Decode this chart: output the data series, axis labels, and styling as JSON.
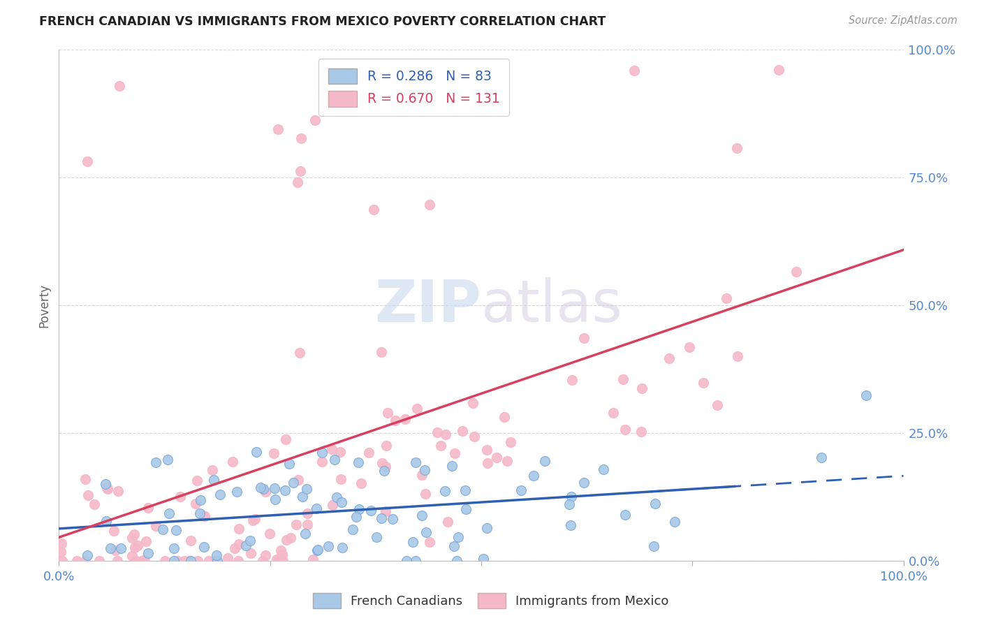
{
  "title": "FRENCH CANADIAN VS IMMIGRANTS FROM MEXICO POVERTY CORRELATION CHART",
  "source_text": "Source: ZipAtlas.com",
  "ylabel": "Poverty",
  "xlim": [
    0.0,
    1.0
  ],
  "ylim": [
    -0.05,
    1.05
  ],
  "blue_r": 0.286,
  "blue_n": 83,
  "pink_r": 0.67,
  "pink_n": 131,
  "blue_color": "#a8c8e8",
  "pink_color": "#f5b8c8",
  "blue_line_color": "#3060b0",
  "pink_line_color": "#d84060",
  "watermark_color": "#c8d8ee",
  "title_fontsize": 12.5,
  "axis_label_color": "#5588cc",
  "grid_color": "#cccccc"
}
